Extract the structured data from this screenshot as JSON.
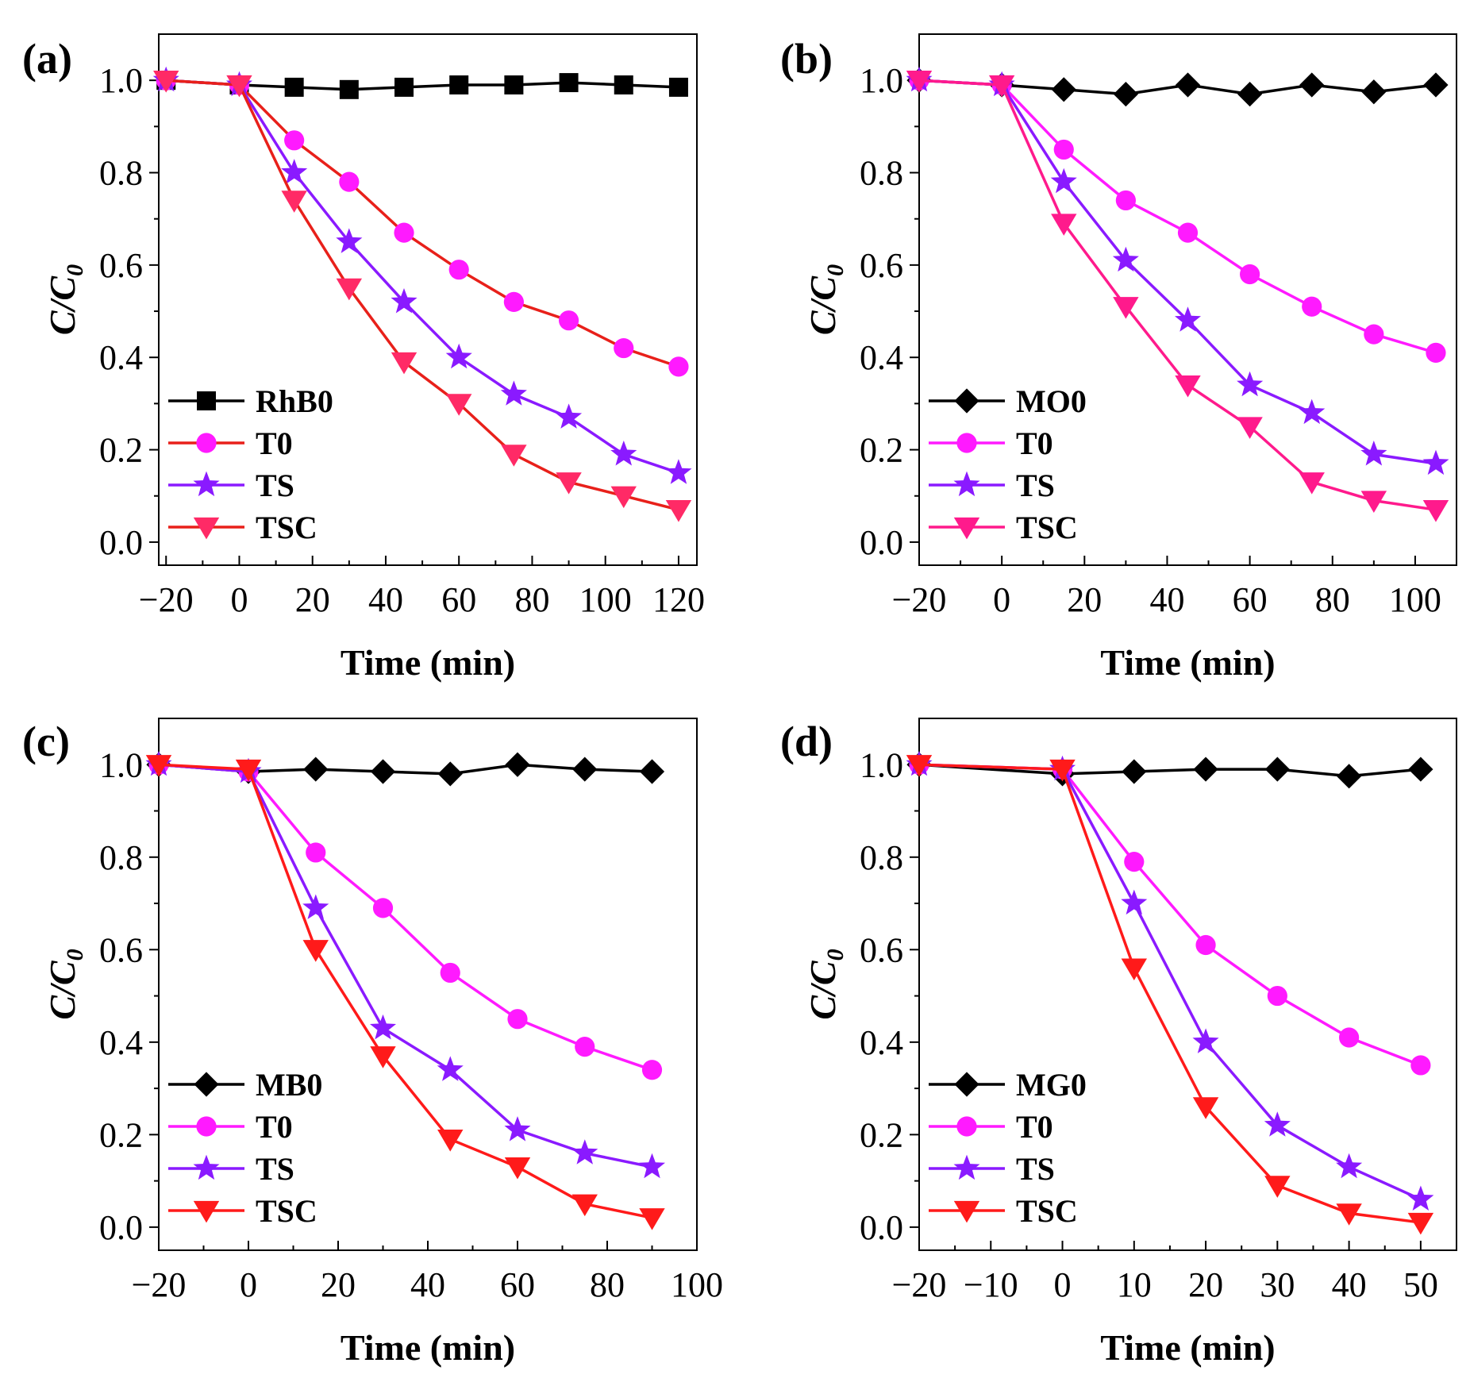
{
  "chart_data": [
    {
      "type": "line",
      "panel_label": "(a)",
      "xlabel": "Time (min)",
      "ylabel_main": "C/C",
      "ylabel_sub": "0",
      "xlim": [
        -22,
        125
      ],
      "ylim": [
        -0.05,
        1.1
      ],
      "xticks": [
        -20,
        0,
        20,
        40,
        60,
        80,
        100,
        120
      ],
      "xtick_labels": [
        "−20",
        "0",
        "20",
        "40",
        "60",
        "80",
        "100",
        "120"
      ],
      "yticks": [
        0.0,
        0.2,
        0.4,
        0.6,
        0.8,
        1.0
      ],
      "ytick_labels": [
        "0.0",
        "0.2",
        "0.4",
        "0.6",
        "0.8",
        "1.0"
      ],
      "legend_position": "bottom-left",
      "series": [
        {
          "name": "RhB0",
          "marker": "square",
          "color": "#000000",
          "x": [
            -20,
            0,
            15,
            30,
            45,
            60,
            75,
            90,
            105,
            120
          ],
          "y": [
            1.0,
            0.99,
            0.985,
            0.98,
            0.985,
            0.99,
            0.99,
            0.995,
            0.99,
            0.985
          ]
        },
        {
          "name": "T0",
          "marker": "circle",
          "color": "#ff1aff",
          "line_color": "#e8201a",
          "x": [
            -20,
            0,
            15,
            30,
            45,
            60,
            75,
            90,
            105,
            120
          ],
          "y": [
            1.0,
            0.99,
            0.87,
            0.78,
            0.67,
            0.59,
            0.52,
            0.48,
            0.42,
            0.38
          ]
        },
        {
          "name": "TS",
          "marker": "star",
          "color": "#8a1aff",
          "x": [
            -20,
            0,
            15,
            30,
            45,
            60,
            75,
            90,
            105,
            120
          ],
          "y": [
            1.0,
            0.99,
            0.8,
            0.65,
            0.52,
            0.4,
            0.32,
            0.27,
            0.19,
            0.15
          ]
        },
        {
          "name": "TSC",
          "marker": "triangle-down",
          "color": "#ff2a66",
          "line_color": "#e8201a",
          "x": [
            -20,
            0,
            15,
            30,
            45,
            60,
            75,
            90,
            105,
            120
          ],
          "y": [
            1.0,
            0.99,
            0.74,
            0.55,
            0.39,
            0.3,
            0.19,
            0.13,
            0.1,
            0.07
          ]
        }
      ]
    },
    {
      "type": "line",
      "panel_label": "(b)",
      "xlabel": "Time (min)",
      "ylabel_main": "C/C",
      "ylabel_sub": "0",
      "xlim": [
        -20,
        110
      ],
      "ylim": [
        -0.05,
        1.1
      ],
      "xticks": [
        -20,
        0,
        20,
        40,
        60,
        80,
        100
      ],
      "xtick_labels": [
        "−20",
        "0",
        "20",
        "40",
        "60",
        "80",
        "100"
      ],
      "yticks": [
        0.0,
        0.2,
        0.4,
        0.6,
        0.8,
        1.0
      ],
      "ytick_labels": [
        "0.0",
        "0.2",
        "0.4",
        "0.6",
        "0.8",
        "1.0"
      ],
      "legend_position": "bottom-left",
      "series": [
        {
          "name": "MO0",
          "marker": "diamond",
          "color": "#000000",
          "x": [
            -20,
            0,
            15,
            30,
            45,
            60,
            75,
            90,
            105
          ],
          "y": [
            1.0,
            0.99,
            0.98,
            0.97,
            0.99,
            0.97,
            0.99,
            0.975,
            0.99
          ]
        },
        {
          "name": "T0",
          "marker": "circle",
          "color": "#ff1aff",
          "x": [
            -20,
            0,
            15,
            30,
            45,
            60,
            75,
            90,
            105
          ],
          "y": [
            1.0,
            0.99,
            0.85,
            0.74,
            0.67,
            0.58,
            0.51,
            0.45,
            0.41
          ]
        },
        {
          "name": "TS",
          "marker": "star",
          "color": "#8a1aff",
          "x": [
            -20,
            0,
            15,
            30,
            45,
            60,
            75,
            90,
            105
          ],
          "y": [
            1.0,
            0.99,
            0.78,
            0.61,
            0.48,
            0.34,
            0.28,
            0.19,
            0.17
          ]
        },
        {
          "name": "TSC",
          "marker": "triangle-down",
          "color": "#ff1a8c",
          "x": [
            -20,
            0,
            15,
            30,
            45,
            60,
            75,
            90,
            105
          ],
          "y": [
            1.0,
            0.99,
            0.69,
            0.51,
            0.34,
            0.25,
            0.13,
            0.09,
            0.07
          ]
        }
      ]
    },
    {
      "type": "line",
      "panel_label": "(c)",
      "xlabel": "Time (min)",
      "ylabel_main": "C/C",
      "ylabel_sub": "0",
      "xlim": [
        -20,
        100
      ],
      "ylim": [
        -0.05,
        1.1
      ],
      "xticks": [
        -20,
        0,
        20,
        40,
        60,
        80,
        100
      ],
      "xtick_labels": [
        "−20",
        "0",
        "20",
        "40",
        "60",
        "80",
        "100"
      ],
      "yticks": [
        0.0,
        0.2,
        0.4,
        0.6,
        0.8,
        1.0
      ],
      "ytick_labels": [
        "0.0",
        "0.2",
        "0.4",
        "0.6",
        "0.8",
        "1.0"
      ],
      "legend_position": "bottom-left",
      "series": [
        {
          "name": "MB0",
          "marker": "diamond",
          "color": "#000000",
          "x": [
            -20,
            0,
            15,
            30,
            45,
            60,
            75,
            90
          ],
          "y": [
            1.0,
            0.985,
            0.99,
            0.985,
            0.98,
            1.0,
            0.99,
            0.985
          ]
        },
        {
          "name": "T0",
          "marker": "circle",
          "color": "#ff1aff",
          "x": [
            -20,
            0,
            15,
            30,
            45,
            60,
            75,
            90
          ],
          "y": [
            1.0,
            0.985,
            0.81,
            0.69,
            0.55,
            0.45,
            0.39,
            0.34
          ]
        },
        {
          "name": "TS",
          "marker": "star",
          "color": "#8a1aff",
          "x": [
            -20,
            0,
            15,
            30,
            45,
            60,
            75,
            90
          ],
          "y": [
            1.0,
            0.985,
            0.69,
            0.43,
            0.34,
            0.21,
            0.16,
            0.13
          ]
        },
        {
          "name": "TSC",
          "marker": "triangle-down",
          "color": "#ff1a1a",
          "x": [
            -20,
            0,
            15,
            30,
            45,
            60,
            75,
            90
          ],
          "y": [
            1.0,
            0.99,
            0.6,
            0.37,
            0.19,
            0.13,
            0.05,
            0.02
          ]
        }
      ]
    },
    {
      "type": "line",
      "panel_label": "(d)",
      "xlabel": "Time (min)",
      "ylabel_main": "C/C",
      "ylabel_sub": "0",
      "xlim": [
        -20,
        55
      ],
      "ylim": [
        -0.05,
        1.1
      ],
      "xticks": [
        -20,
        -10,
        0,
        10,
        20,
        30,
        40,
        50
      ],
      "xtick_labels": [
        "−20",
        "−10",
        "0",
        "10",
        "20",
        "30",
        "40",
        "50"
      ],
      "yticks": [
        0.0,
        0.2,
        0.4,
        0.6,
        0.8,
        1.0
      ],
      "ytick_labels": [
        "0.0",
        "0.2",
        "0.4",
        "0.6",
        "0.8",
        "1.0"
      ],
      "legend_position": "bottom-left",
      "series": [
        {
          "name": "MG0",
          "marker": "diamond",
          "color": "#000000",
          "x": [
            -20,
            0,
            10,
            20,
            30,
            40,
            50
          ],
          "y": [
            1.0,
            0.98,
            0.985,
            0.99,
            0.99,
            0.975,
            0.99
          ]
        },
        {
          "name": "T0",
          "marker": "circle",
          "color": "#ff1aff",
          "x": [
            -20,
            0,
            10,
            20,
            30,
            40,
            50
          ],
          "y": [
            1.0,
            0.99,
            0.79,
            0.61,
            0.5,
            0.41,
            0.35
          ]
        },
        {
          "name": "TS",
          "marker": "star",
          "color": "#8a1aff",
          "x": [
            -20,
            0,
            10,
            20,
            30,
            40,
            50
          ],
          "y": [
            1.0,
            0.99,
            0.7,
            0.4,
            0.22,
            0.13,
            0.06
          ]
        },
        {
          "name": "TSC",
          "marker": "triangle-down",
          "color": "#ff1a1a",
          "x": [
            -20,
            0,
            10,
            20,
            30,
            40,
            50
          ],
          "y": [
            1.0,
            0.99,
            0.56,
            0.26,
            0.09,
            0.03,
            0.01
          ]
        }
      ]
    }
  ]
}
